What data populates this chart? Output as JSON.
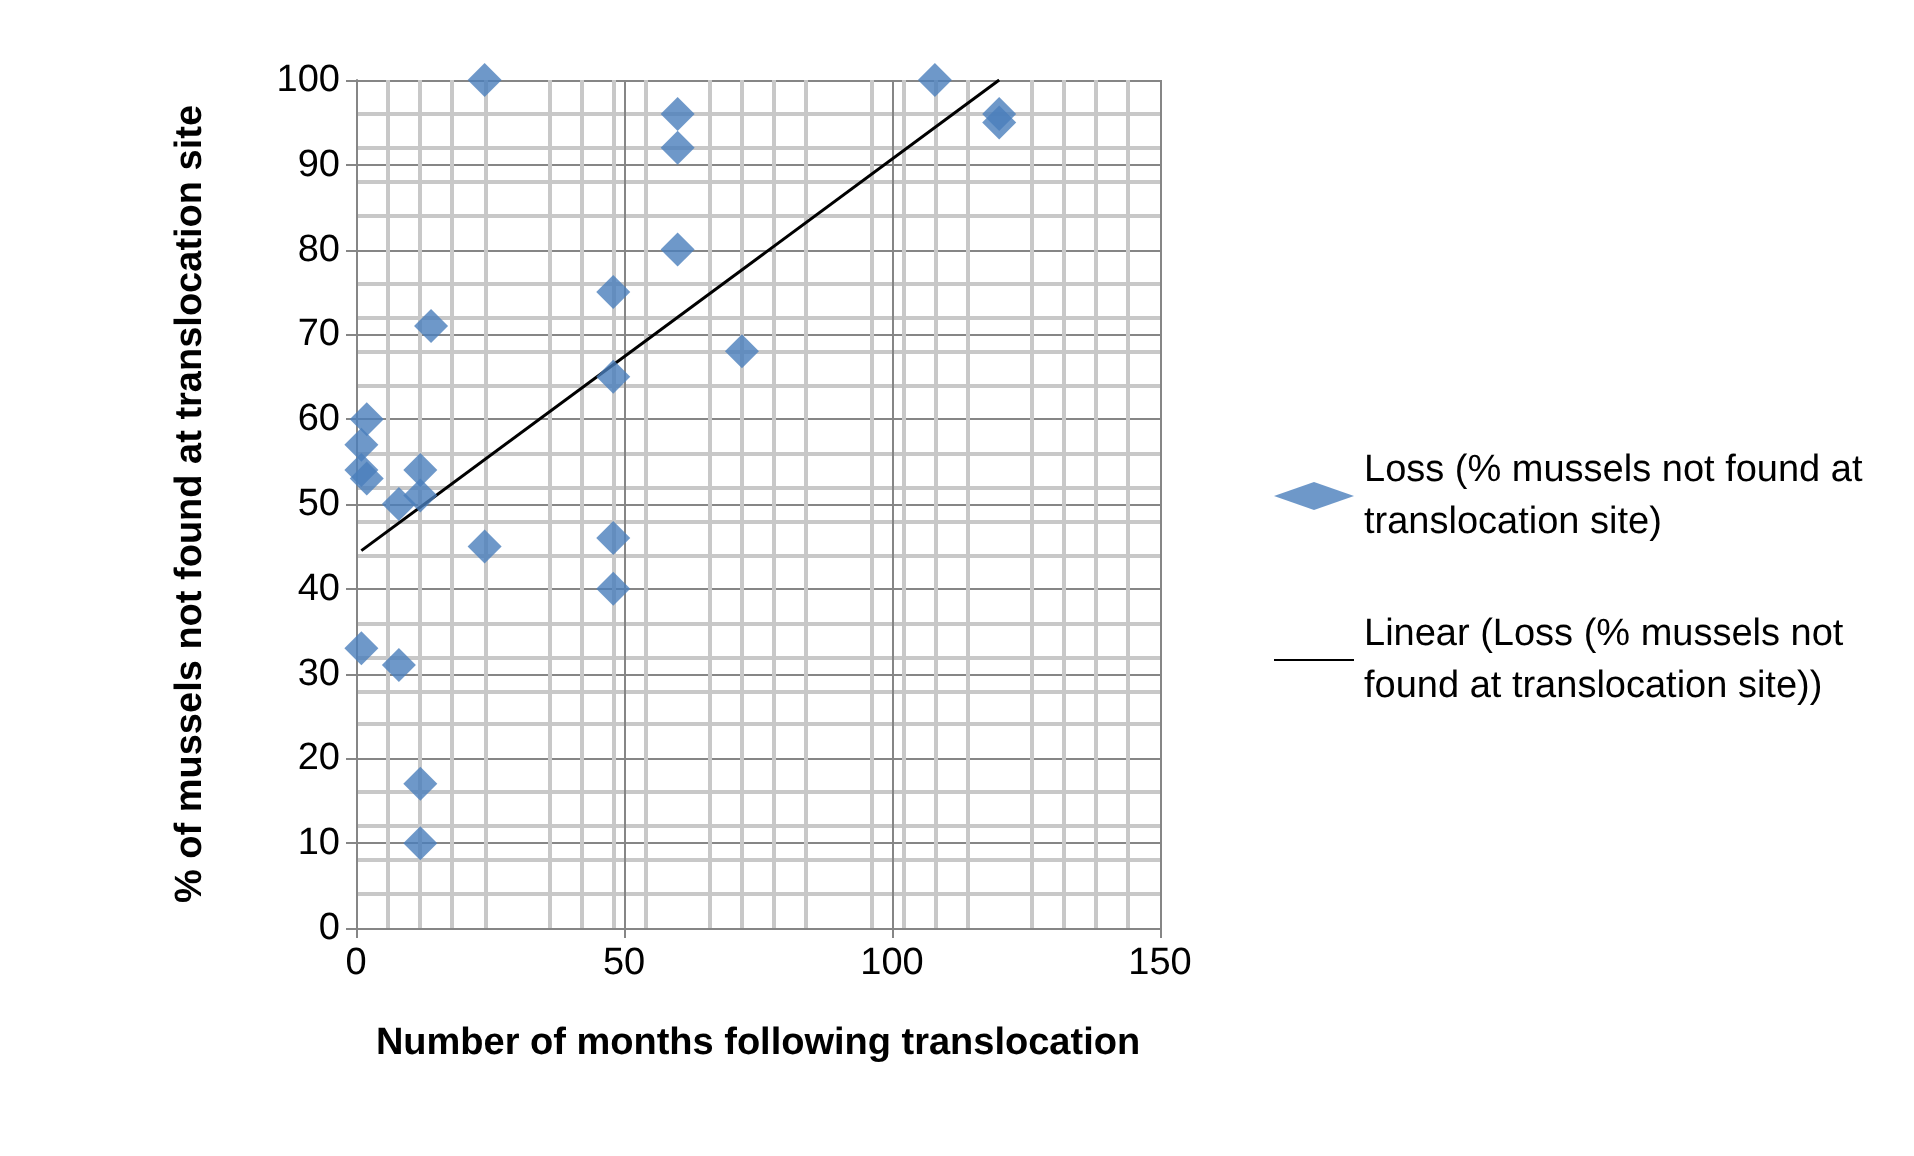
{
  "chart_data": {
    "type": "scatter",
    "xlabel": "Number of months following translocation",
    "ylabel": "% of mussels not found at translocation site",
    "xlim": [
      0,
      150
    ],
    "xticks": [
      0,
      50,
      100,
      150
    ],
    "ylim": [
      0,
      100
    ],
    "yticks": [
      0,
      10,
      20,
      30,
      40,
      50,
      60,
      70,
      80,
      90,
      100
    ],
    "grid": true,
    "legend": "right",
    "marker": "diamond",
    "series": [
      {
        "name": "Loss (% mussels not found at translocation site)",
        "color": "#4a7ebb",
        "x": [
          24,
          60,
          60,
          60,
          48,
          14,
          72,
          48,
          2,
          1,
          1,
          2,
          12,
          8,
          12,
          24,
          48,
          48,
          1,
          8,
          12,
          12,
          108,
          120,
          120
        ],
        "values": [
          100,
          96,
          92,
          80,
          75,
          71,
          68,
          65,
          60,
          57,
          54,
          53,
          54,
          50,
          51,
          45,
          46,
          40,
          33,
          31,
          17,
          10,
          100,
          96,
          95
        ]
      },
      {
        "name": "Linear (Loss (% mussels not found at translocation site))",
        "type": "line",
        "color": "#000000",
        "marker": "none",
        "x": [
          1,
          120
        ],
        "values": [
          44.5,
          100
        ]
      }
    ]
  }
}
